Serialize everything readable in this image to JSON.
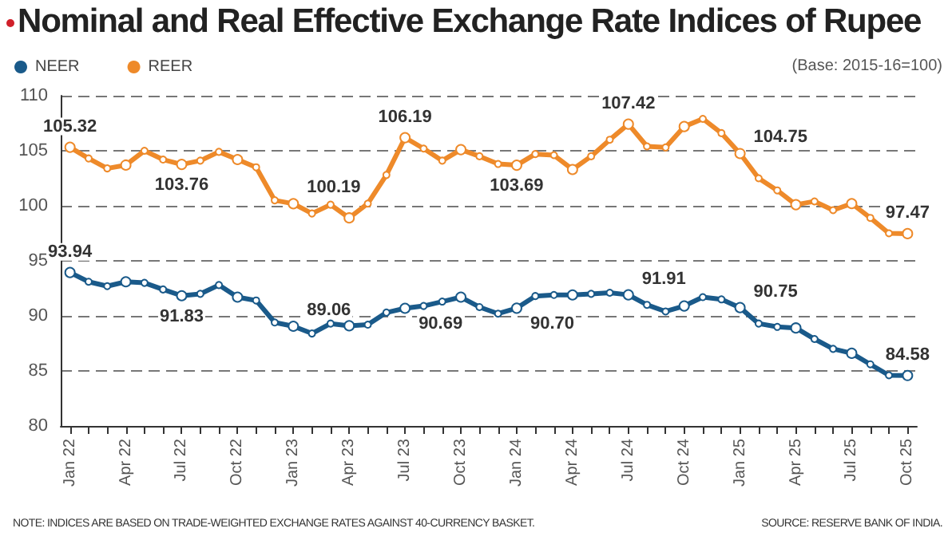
{
  "chart_data": {
    "type": "line",
    "title": "Nominal and Real Effective Exchange Rate Indices of Rupee",
    "categories": [
      "Jan 22",
      null,
      null,
      "Apr 22",
      null,
      null,
      "Jul 22",
      null,
      null,
      "Oct 22",
      null,
      null,
      "Jan 23",
      null,
      null,
      "Apr 23",
      null,
      null,
      "Jul 23",
      null,
      null,
      "Oct 23",
      null,
      null,
      "Jan 24",
      null,
      null,
      "Apr 24",
      null,
      null,
      "Jul 24",
      null,
      null,
      "Oct 24",
      null,
      null,
      "Jan 25",
      null,
      null,
      "Apr 25",
      null,
      null,
      "Jul 25",
      null,
      null,
      "Oct 25"
    ],
    "series": [
      {
        "name": "NEER",
        "color": "#1a5a8a",
        "values": [
          93.94,
          93.1,
          92.7,
          93.1,
          93.0,
          92.4,
          91.83,
          92.0,
          92.8,
          91.7,
          91.4,
          89.4,
          89.06,
          88.4,
          89.3,
          89.1,
          89.2,
          90.3,
          90.69,
          90.9,
          91.3,
          91.7,
          90.8,
          90.2,
          90.7,
          91.8,
          91.9,
          91.9,
          92.0,
          92.1,
          91.91,
          91.0,
          90.4,
          90.9,
          91.7,
          91.5,
          90.75,
          89.3,
          89.0,
          88.9,
          87.9,
          87.0,
          86.6,
          85.6,
          84.6,
          84.58
        ],
        "value_labels": [
          "93.94",
          null,
          null,
          null,
          null,
          null,
          "91.83",
          null,
          null,
          null,
          null,
          null,
          "89.06",
          null,
          null,
          null,
          null,
          null,
          "90.69",
          null,
          null,
          null,
          null,
          null,
          "90.70",
          null,
          null,
          null,
          null,
          null,
          "91.91",
          null,
          null,
          null,
          null,
          null,
          "90.75",
          null,
          null,
          null,
          null,
          null,
          null,
          null,
          null,
          "84.58"
        ]
      },
      {
        "name": "REER",
        "color": "#ee8a2a",
        "values": [
          105.32,
          104.3,
          103.4,
          103.7,
          105.0,
          104.2,
          103.76,
          104.1,
          104.9,
          104.2,
          103.5,
          100.5,
          100.19,
          99.3,
          100.1,
          98.9,
          100.2,
          102.8,
          106.19,
          105.2,
          104.1,
          105.1,
          104.5,
          103.8,
          103.69,
          104.7,
          104.6,
          103.3,
          104.5,
          106.0,
          107.42,
          105.4,
          105.3,
          107.2,
          107.9,
          106.6,
          104.75,
          102.5,
          101.4,
          100.1,
          100.4,
          99.6,
          100.2,
          98.9,
          97.5,
          97.47
        ],
        "value_labels": [
          "105.32",
          null,
          null,
          null,
          null,
          null,
          "103.76",
          null,
          null,
          null,
          null,
          null,
          "100.19",
          null,
          null,
          null,
          null,
          null,
          "106.19",
          null,
          null,
          null,
          null,
          null,
          "103.69",
          null,
          null,
          null,
          null,
          null,
          "107.42",
          null,
          null,
          null,
          null,
          null,
          "104.75",
          null,
          null,
          null,
          null,
          null,
          null,
          null,
          null,
          "97.47"
        ]
      }
    ],
    "ylim": [
      80,
      110
    ],
    "yticks": [
      80,
      85,
      90,
      95,
      100,
      105,
      110
    ],
    "grid": "y",
    "legend": "top left",
    "marker": "circle",
    "line_style": "solid",
    "annotations": [
      "(Base: 2015-16=100)",
      "NOTE: INDICES ARE BASED ON TRADE-WEIGHTED EXCHANGE RATES AGAINST 40-CURRENCY BASKET.",
      "SOURCE: RESERVE BANK OF INDIA."
    ]
  }
}
